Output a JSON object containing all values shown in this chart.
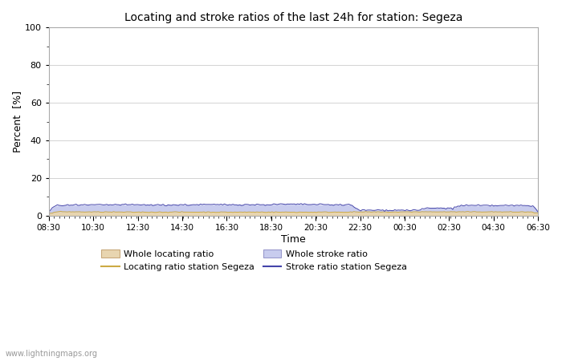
{
  "title": "Locating and stroke ratios of the last 24h for station: Segeza",
  "xlabel": "Time",
  "ylabel": "Percent  [%]",
  "ylim": [
    0,
    100
  ],
  "yticks": [
    0,
    20,
    40,
    60,
    80,
    100
  ],
  "yticks_minor": [
    10,
    30,
    50,
    70,
    90
  ],
  "x_labels": [
    "08:30",
    "10:30",
    "12:30",
    "14:30",
    "16:30",
    "18:30",
    "20:30",
    "22:30",
    "00:30",
    "02:30",
    "04:30",
    "06:30"
  ],
  "watermark": "www.lightningmaps.org",
  "whole_locating_color": "#e8d5b0",
  "whole_locating_edge": "#c8a87a",
  "whole_stroke_color": "#c8ccee",
  "whole_stroke_edge": "#9999cc",
  "locating_line_color": "#ccaa44",
  "stroke_line_color": "#4444aa",
  "background_color": "#ffffff",
  "grid_color": "#cccccc"
}
